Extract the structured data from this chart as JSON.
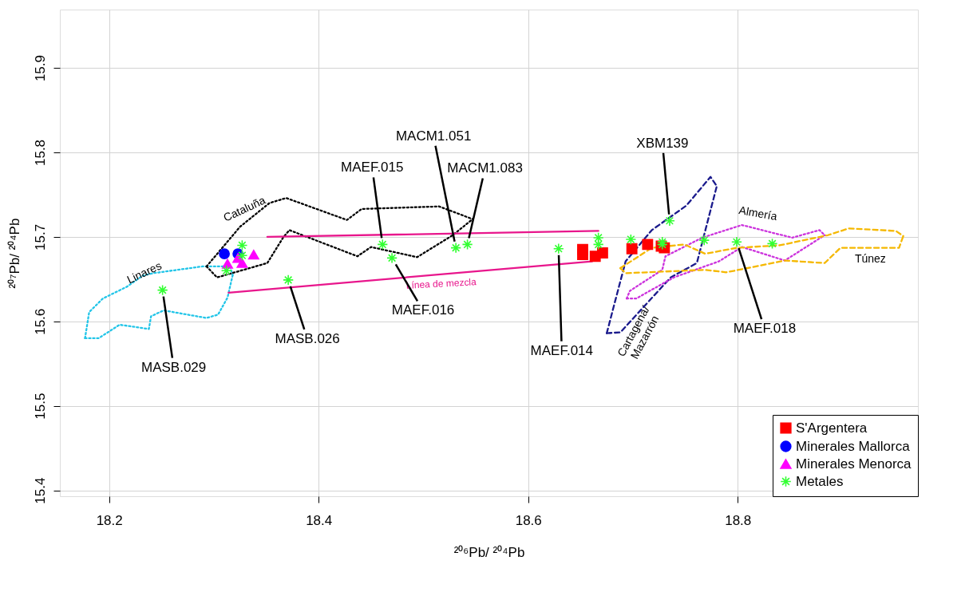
{
  "chart_data": {
    "type": "scatter",
    "xlabel": "²⁰⁶Pb/ ²⁰⁴Pb",
    "ylabel": "²⁰⁷Pb/ ²⁰⁴Pb",
    "xlim": [
      18.153,
      18.972
    ],
    "ylim": [
      15.393,
      15.969
    ],
    "xticks": [
      18.2,
      18.4,
      18.6,
      18.8
    ],
    "yticks": [
      15.4,
      15.5,
      15.6,
      15.7,
      15.8,
      15.9
    ],
    "grid": true,
    "legend": "bottom right",
    "series": [
      {
        "type": "line",
        "name": "Linares",
        "line_style": "dotted",
        "color": "#22c5e8",
        "x": [
          18.177,
          18.181,
          18.194,
          18.217,
          18.232,
          18.242,
          18.289,
          18.315,
          18.318
        ],
        "values": [
          15.58,
          15.611,
          15.627,
          15.641,
          15.654,
          15.657,
          15.665,
          15.665,
          15.655
        ]
      },
      {
        "type": "line",
        "line_style": "dotted",
        "color": "#22c5e8",
        "x": [
          18.177,
          18.19,
          18.21,
          18.238,
          18.24,
          18.252,
          18.293,
          18.304,
          18.313,
          18.318
        ],
        "values": [
          15.58,
          15.58,
          15.596,
          15.591,
          15.606,
          15.613,
          15.604,
          15.608,
          15.628,
          15.655
        ]
      },
      {
        "type": "line",
        "name": "Cataluña",
        "line_style": "dotted",
        "color": "#000000",
        "x": [
          18.293,
          18.325,
          18.353,
          18.369,
          18.427,
          18.441,
          18.515,
          18.547
        ],
        "values": [
          15.665,
          15.712,
          15.74,
          15.746,
          15.72,
          15.733,
          15.736,
          15.721
        ]
      },
      {
        "type": "line",
        "line_style": "dotted",
        "color": "#000000",
        "x": [
          18.293,
          18.303,
          18.351,
          18.366,
          18.372,
          18.437,
          18.45,
          18.494,
          18.528,
          18.547
        ],
        "values": [
          15.665,
          15.652,
          15.669,
          15.699,
          15.708,
          15.677,
          15.688,
          15.676,
          15.702,
          15.721
        ]
      },
      {
        "type": "line",
        "name": "Cartagena/\nMazarrón",
        "line_style": "dashed",
        "color": "#1a1a8c",
        "x": [
          18.675,
          18.683,
          18.693,
          18.718,
          18.751,
          18.774,
          18.78
        ],
        "values": [
          15.586,
          15.624,
          15.671,
          15.708,
          15.737,
          15.771,
          15.76
        ]
      },
      {
        "type": "line",
        "line_style": "dashed",
        "color": "#1a1a8c",
        "x": [
          18.675,
          18.688,
          18.736,
          18.761,
          18.78
        ],
        "values": [
          15.586,
          15.587,
          15.652,
          15.669,
          15.76
        ]
      },
      {
        "type": "line",
        "name": "Almería",
        "line_style": "dotted",
        "color": "#cc33dd",
        "x": [
          18.694,
          18.697,
          18.728,
          18.731,
          18.766,
          18.804,
          18.852,
          18.878,
          18.883
        ],
        "values": [
          15.627,
          15.636,
          15.661,
          15.677,
          15.699,
          15.714,
          15.699,
          15.708,
          15.702
        ]
      },
      {
        "type": "line",
        "line_style": "dotted",
        "color": "#cc33dd",
        "x": [
          18.694,
          18.703,
          18.739,
          18.782,
          18.804,
          18.845,
          18.883
        ],
        "values": [
          15.627,
          15.627,
          15.652,
          15.671,
          15.688,
          15.672,
          15.702
        ]
      },
      {
        "type": "line",
        "name": "Túnez",
        "line_style": "dashed",
        "color": "#f5b800",
        "x": [
          18.688,
          18.693,
          18.769,
          18.789,
          18.845,
          18.883,
          18.898,
          18.954,
          18.958
        ],
        "values": [
          15.663,
          15.657,
          15.661,
          15.658,
          15.672,
          15.669,
          15.687,
          15.687,
          15.701
        ]
      },
      {
        "type": "line",
        "line_style": "dashed",
        "color": "#f5b800",
        "x": [
          18.688,
          18.718,
          18.749,
          18.769,
          18.799,
          18.84,
          18.886,
          18.906,
          18.951,
          18.958
        ],
        "values": [
          15.663,
          15.687,
          15.691,
          15.68,
          15.687,
          15.69,
          15.702,
          15.71,
          15.707,
          15.701
        ]
      },
      {
        "type": "line",
        "line_style": "solid",
        "color": "#e8168c",
        "x": [
          18.351,
          18.667
        ],
        "values": [
          15.7,
          15.707
        ]
      },
      {
        "type": "line",
        "line_style": "solid",
        "color": "#e8168c",
        "x": [
          18.314,
          18.661
        ],
        "values": [
          15.634,
          15.671
        ]
      },
      {
        "name": "S'Argentera",
        "color": "#ff0000",
        "marker": "square",
        "x": [
          18.652,
          18.652,
          18.664,
          18.671,
          18.699,
          18.714,
          18.727,
          18.73
        ],
        "values": [
          15.685,
          15.679,
          15.677,
          15.681,
          15.686,
          15.691,
          15.689,
          15.687
        ]
      },
      {
        "name": "Minerales Mallorca",
        "color": "#0000ff",
        "marker": "circle",
        "x": [
          18.31,
          18.323
        ],
        "values": [
          15.68,
          15.68
        ]
      },
      {
        "name": "Minerales Menorca",
        "color": "#ff00ff",
        "marker": "triangle",
        "x": [
          18.338,
          18.327,
          18.323,
          18.313
        ],
        "values": [
          15.679,
          15.669,
          15.675,
          15.668
        ]
      },
      {
        "name": "Metales",
        "color": "#33ff33",
        "marker": "cross",
        "x": [
          18.251,
          18.327,
          18.327,
          18.312,
          18.371,
          18.461,
          18.47,
          18.531,
          18.542,
          18.629,
          18.667,
          18.667,
          18.698,
          18.728,
          18.728,
          18.735,
          18.768,
          18.799,
          18.833
        ],
        "values": [
          15.637,
          15.69,
          15.678,
          15.66,
          15.649,
          15.691,
          15.675,
          15.687,
          15.691,
          15.686,
          15.699,
          15.691,
          15.697,
          15.694,
          15.691,
          15.719,
          15.696,
          15.694,
          15.692
        ]
      }
    ],
    "annotations": [
      {
        "text": "Línea de mezcla",
        "x": 18.517,
        "y": 15.656
      },
      {
        "text": "MASB.029",
        "x": 18.251,
        "y": 15.637
      },
      {
        "text": "MASB.026",
        "x": 18.371,
        "y": 15.649
      },
      {
        "text": "MAEF.016",
        "x": 18.47,
        "y": 15.675
      },
      {
        "text": "MAEF.015",
        "x": 18.461,
        "y": 15.691
      },
      {
        "text": "MACM1.051",
        "x": 18.531,
        "y": 15.687
      },
      {
        "text": "MACM1.083",
        "x": 18.542,
        "y": 15.691
      },
      {
        "text": "XBM139",
        "x": 18.735,
        "y": 15.719
      },
      {
        "text": "MAEF.014",
        "x": 18.629,
        "y": 15.686
      },
      {
        "text": "MAEF.018",
        "x": 18.799,
        "y": 15.694
      }
    ]
  }
}
